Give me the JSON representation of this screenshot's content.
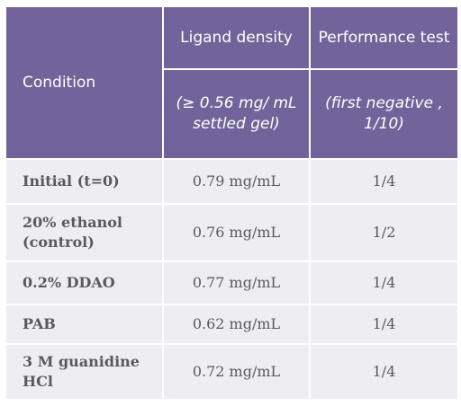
{
  "header": {
    "condition": "Condition",
    "ligand_density": "Ligand density",
    "ligand_density_spec": "(≥ 0.56 mg/ mL settled gel)",
    "performance_test": "Performance test",
    "performance_test_spec": "(first negative , 1/10)"
  },
  "rows": [
    {
      "condition": "Initial (t=0)",
      "ligand_density": "0.79 mg/mL",
      "performance": "1/4"
    },
    {
      "condition": "20% ethanol (control)",
      "ligand_density": "0.76 mg/mL",
      "performance": "1/2"
    },
    {
      "condition": "0.2% DDAO",
      "ligand_density": "0.77 mg/mL",
      "performance": "1/4"
    },
    {
      "condition": "PAB",
      "ligand_density": "0.62 mg/mL",
      "performance": "1/4"
    },
    {
      "condition": "3 M guanidine HCl",
      "ligand_density": "0.72 mg/mL",
      "performance": "1/4"
    }
  ],
  "colors": {
    "header_bg": "#72649a",
    "header_text": "#ffffff",
    "row_bg": "#eeedf2",
    "row_text": "#5a5a5a"
  }
}
